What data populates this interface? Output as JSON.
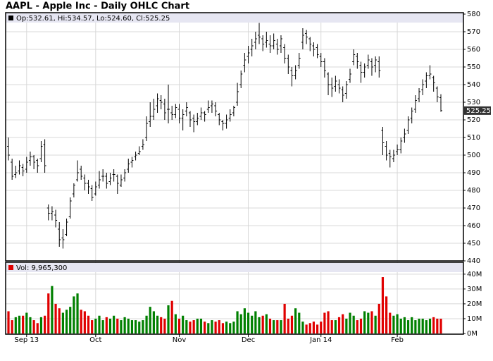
{
  "chart_data": [
    {
      "type": "ohlc",
      "title": "AAPL - Apple Inc - Daily OHLC Chart",
      "header": "Op:532.61, Hi:534.57, Lo:524.60, Cl:525.25",
      "color": "#000000",
      "grid": true,
      "categories": [
        null,
        null,
        null,
        null,
        null,
        "Sep 13",
        null,
        null,
        null,
        null,
        null,
        null,
        null,
        null,
        null,
        null,
        null,
        null,
        null,
        null,
        null,
        null,
        null,
        null,
        "Oct",
        null,
        null,
        null,
        null,
        null,
        null,
        null,
        null,
        null,
        null,
        null,
        null,
        null,
        null,
        null,
        null,
        null,
        null,
        null,
        null,
        null,
        null,
        "Nov",
        null,
        null,
        null,
        null,
        null,
        null,
        null,
        null,
        null,
        null,
        null,
        null,
        null,
        null,
        null,
        null,
        null,
        null,
        "Dec",
        null,
        null,
        null,
        null,
        null,
        null,
        null,
        null,
        null,
        null,
        null,
        null,
        null,
        null,
        null,
        null,
        null,
        null,
        null,
        "Jan 14",
        null,
        null,
        null,
        null,
        null,
        null,
        null,
        null,
        null,
        null,
        null,
        null,
        null,
        null,
        null,
        null,
        null,
        null,
        null,
        null,
        "Feb",
        null,
        null,
        null,
        null,
        null,
        null,
        null,
        null,
        null,
        null,
        null,
        null
      ],
      "open": [
        505,
        496,
        489,
        491,
        493,
        492,
        497,
        499,
        497,
        498,
        506,
        470,
        467,
        466,
        458,
        453,
        455,
        465,
        478,
        486,
        492,
        487,
        484,
        481,
        478,
        483,
        488,
        488,
        485,
        489,
        488,
        483,
        487,
        492,
        496,
        499,
        501,
        505,
        510,
        519,
        522,
        528,
        531,
        529,
        526,
        524,
        523,
        526,
        521,
        525,
        524,
        521,
        519,
        522,
        524,
        526,
        528,
        528,
        523,
        519,
        518,
        521,
        524,
        530,
        540,
        551,
        556,
        560,
        564,
        568,
        566,
        564,
        563,
        562,
        563,
        562,
        561,
        555,
        548,
        545,
        551,
        564,
        569,
        566,
        562,
        561,
        556,
        553,
        546,
        540,
        539,
        540,
        537,
        535,
        543,
        553,
        556,
        551,
        547,
        551,
        553,
        551,
        553,
        514,
        505,
        501,
        498,
        502,
        503,
        510,
        514,
        521,
        526,
        532,
        537,
        542,
        545,
        544,
        538,
        532.61
      ],
      "high": [
        510,
        498,
        494,
        497,
        495,
        499,
        502,
        500,
        498,
        508,
        509,
        472,
        471,
        469,
        462,
        458,
        464,
        476,
        484,
        497,
        494,
        489,
        486,
        483,
        485,
        491,
        492,
        490,
        490,
        492,
        489,
        489,
        492,
        498,
        499,
        502,
        505,
        509,
        522,
        530,
        532,
        535,
        534,
        532,
        540,
        528,
        529,
        529,
        526,
        530,
        525,
        523,
        524,
        527,
        525,
        531,
        531,
        530,
        524,
        520,
        523,
        526,
        528,
        541,
        548,
        558,
        562,
        566,
        570,
        575,
        568,
        570,
        568,
        569,
        566,
        568,
        563,
        557,
        550,
        551,
        558,
        572,
        571,
        567,
        564,
        563,
        558,
        555,
        547,
        544,
        545,
        543,
        539,
        542,
        549,
        560,
        558,
        553,
        552,
        557,
        555,
        556,
        556,
        516,
        508,
        503,
        503,
        506,
        510,
        515,
        522,
        527,
        534,
        538,
        543,
        547,
        551,
        545,
        539,
        534.57
      ],
      "low": [
        497,
        486,
        487,
        489,
        488,
        490,
        494,
        492,
        490,
        496,
        490,
        463,
        463,
        459,
        448,
        447,
        454,
        464,
        476,
        485,
        486,
        480,
        478,
        474,
        477,
        481,
        485,
        481,
        483,
        485,
        478,
        482,
        485,
        490,
        493,
        497,
        500,
        503,
        508,
        516,
        520,
        524,
        526,
        520,
        518,
        520,
        521,
        518,
        514,
        522,
        516,
        513,
        517,
        520,
        519,
        524,
        524,
        522,
        517,
        514,
        515,
        519,
        522,
        528,
        538,
        547,
        552,
        556,
        560,
        563,
        559,
        561,
        558,
        560,
        557,
        558,
        552,
        546,
        539,
        543,
        549,
        560,
        563,
        559,
        556,
        555,
        550,
        544,
        534,
        533,
        536,
        535,
        530,
        532,
        541,
        551,
        549,
        541,
        544,
        549,
        545,
        547,
        544,
        500,
        497,
        493,
        496,
        500,
        501,
        507,
        512,
        518,
        524,
        530,
        534,
        538,
        543,
        536,
        530,
        524.6
      ],
      "close": [
        500,
        488,
        490,
        494,
        491,
        496,
        499,
        496,
        494,
        505,
        494,
        467,
        468,
        463,
        452,
        452,
        462,
        474,
        483,
        490,
        488,
        484,
        482,
        476,
        482,
        486,
        488,
        484,
        487,
        489,
        484,
        486,
        490,
        495,
        497,
        500,
        502,
        506,
        518,
        522,
        526,
        532,
        530,
        524,
        526,
        523,
        527,
        521,
        523,
        527,
        520,
        519,
        521,
        524,
        523,
        527,
        529,
        525,
        520,
        518,
        520,
        523,
        527,
        536,
        546,
        554,
        558,
        562,
        566,
        567,
        563,
        565,
        562,
        565,
        560,
        566,
        555,
        550,
        545,
        548,
        555,
        568,
        567,
        563,
        560,
        557,
        553,
        548,
        540,
        538,
        542,
        538,
        534,
        540,
        546,
        557,
        553,
        547,
        550,
        554,
        550,
        554,
        548,
        507,
        500,
        499,
        500,
        503,
        508,
        512,
        520,
        525,
        531,
        536,
        540,
        545,
        546,
        541,
        533,
        525.25
      ],
      "ylim": [
        440,
        580
      ],
      "yticks": [
        440,
        450,
        460,
        470,
        480,
        490,
        500,
        510,
        520,
        530,
        540,
        550,
        560,
        570,
        580
      ]
    },
    {
      "type": "bar",
      "header": "Vol: 9,965,300",
      "up_color": "#008000",
      "down_color": "#e00000",
      "grid": true,
      "values": [
        15,
        9,
        11,
        12,
        12,
        14,
        11,
        9,
        7,
        11,
        12,
        27,
        32,
        20,
        17,
        14,
        16,
        18,
        25,
        27,
        16,
        15,
        12,
        9,
        10,
        12,
        9,
        11,
        10,
        12,
        10,
        9,
        11,
        10,
        9,
        9,
        8,
        9,
        12,
        18,
        15,
        12,
        11,
        10,
        19,
        22,
        13,
        10,
        12,
        9,
        8,
        9,
        10,
        10,
        8,
        7,
        9,
        8,
        9,
        7,
        8,
        7,
        8,
        15,
        13,
        17,
        14,
        12,
        15,
        11,
        12,
        13,
        10,
        9,
        9,
        9,
        20,
        10,
        12,
        17,
        14,
        8,
        6,
        7,
        8,
        6,
        8,
        14,
        15,
        9,
        9,
        11,
        13,
        10,
        14,
        12,
        9,
        10,
        15,
        14,
        15,
        12,
        20,
        38,
        25,
        14,
        12,
        13,
        10,
        11,
        9,
        11,
        9,
        10,
        10,
        9,
        10,
        11,
        10,
        9.9653
      ],
      "ylim": [
        0,
        48
      ],
      "yticks": [
        {
          "value": 0,
          "label": "0M"
        },
        {
          "value": 10,
          "label": "10M"
        },
        {
          "value": 20,
          "label": "20M"
        },
        {
          "value": 30,
          "label": "30M"
        },
        {
          "value": 40,
          "label": "40M"
        }
      ]
    }
  ]
}
